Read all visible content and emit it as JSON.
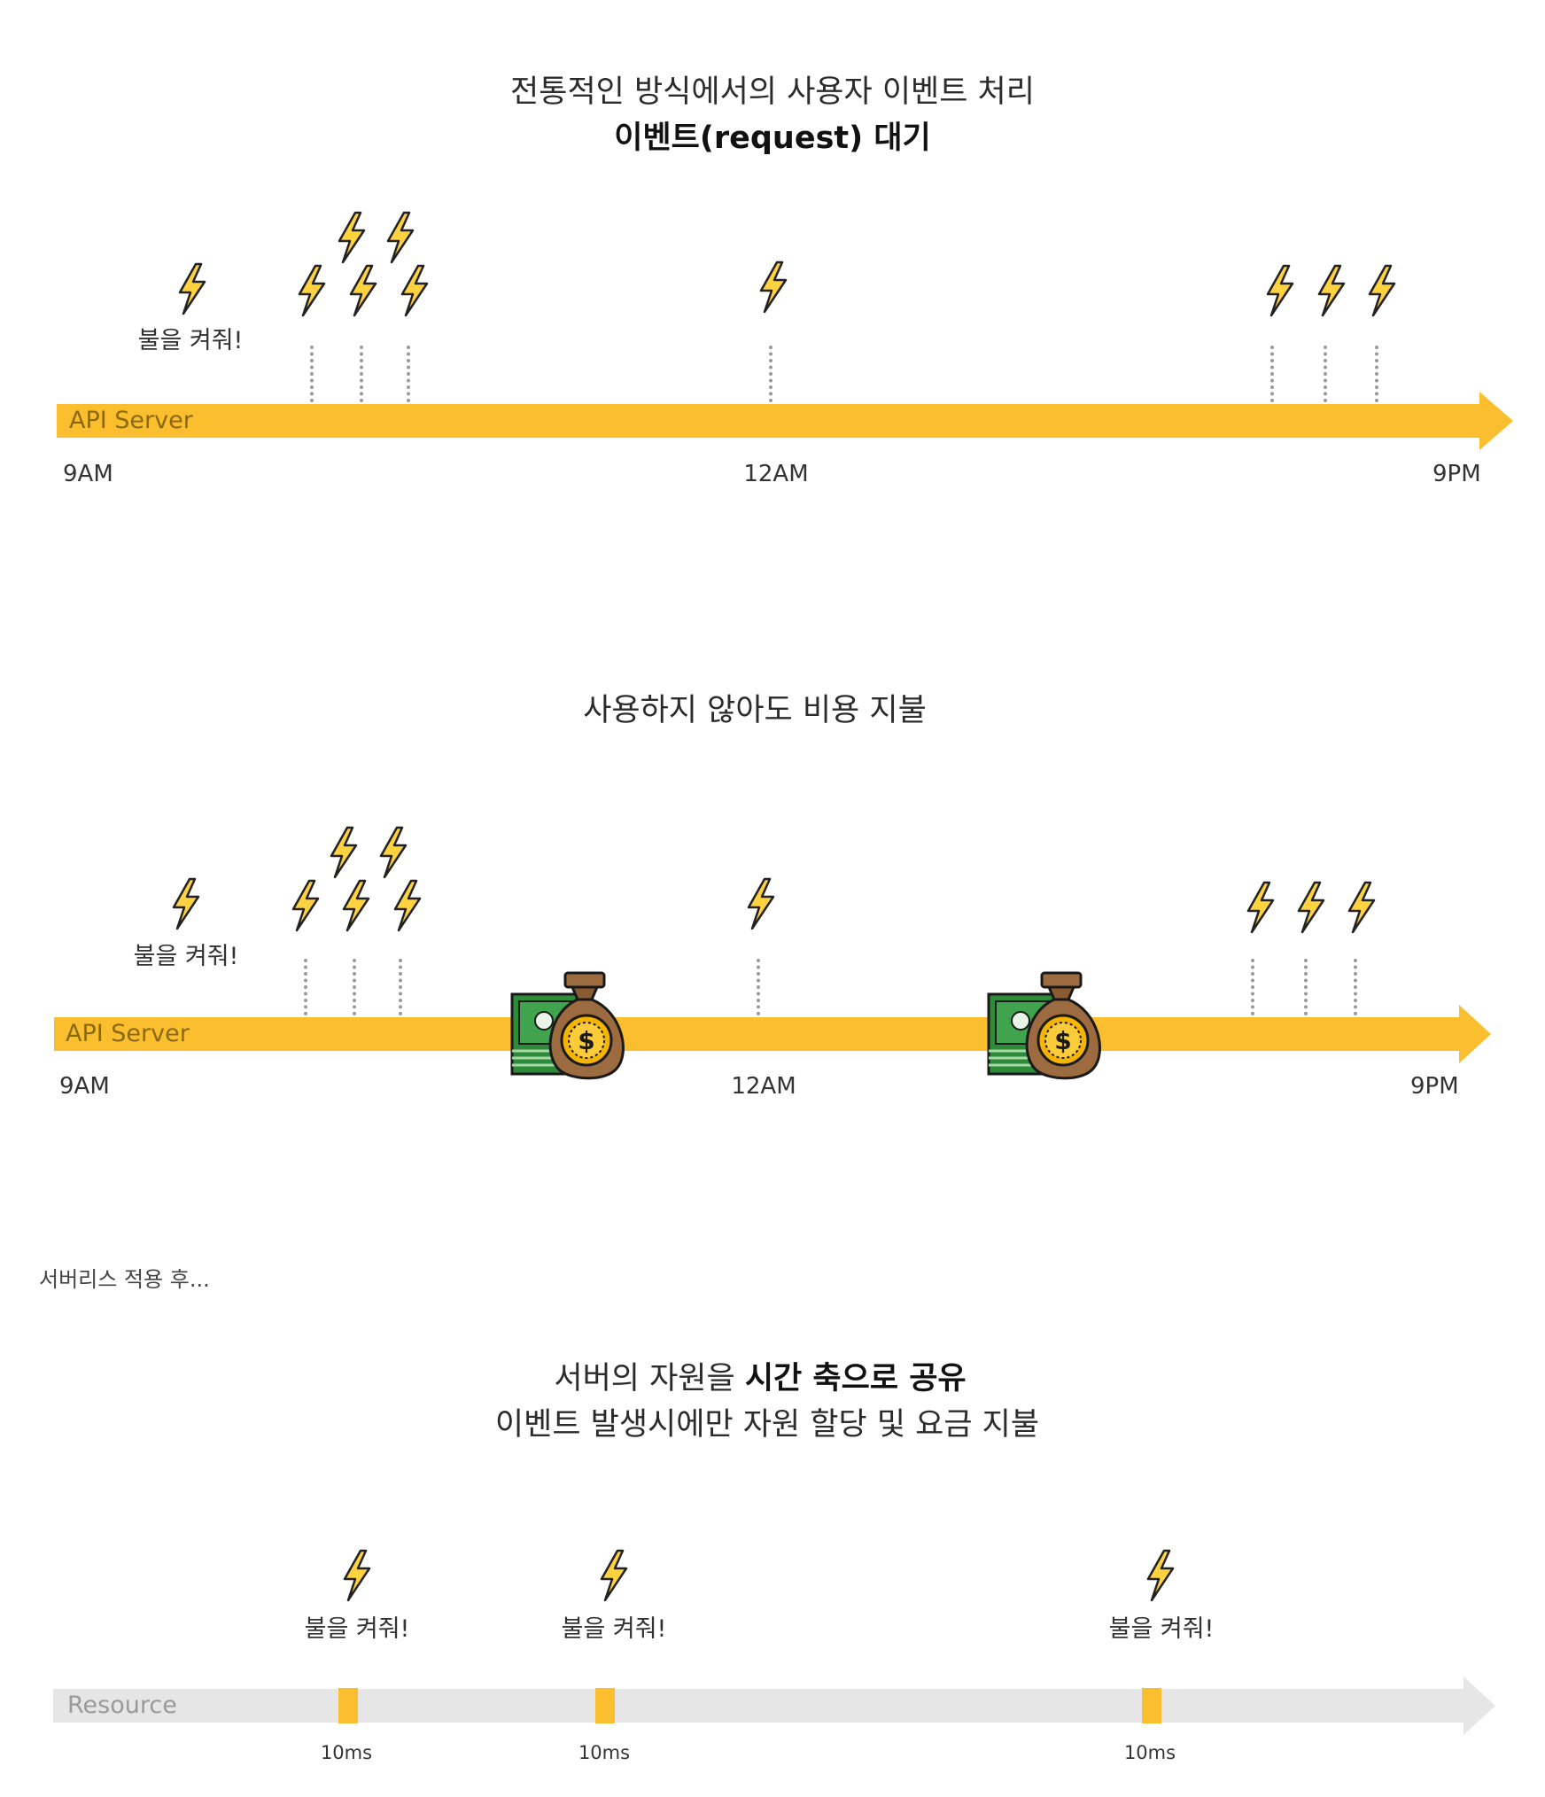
{
  "section1": {
    "title_line1": "전통적인 방식에서의 사용자 이벤트 처리",
    "title_line2": "이벤트(request) 대기",
    "fire_label": "불을 켜줘!",
    "bar_label": "API Server",
    "time_start": "9AM",
    "time_mid": "12AM",
    "time_end": "9PM"
  },
  "section2": {
    "title": "사용하지 않아도 비용 지불",
    "fire_label": "불을 켜줘!",
    "bar_label": "API Server",
    "time_start": "9AM",
    "time_mid": "12AM",
    "time_end": "9PM"
  },
  "serverless_note": "서버리스 적용 후...",
  "section3": {
    "title_line1_prefix": "서버의 자원을 ",
    "title_line1_bold": "시간 축으로 공유",
    "title_line2": "이벤트 발생시에만 자원 할당 및 요금 지불",
    "fire_labels": [
      "불을 켜줘!",
      "불을 켜줘!",
      "불을 켜줘!"
    ],
    "bar_label": "Resource",
    "duration_labels": [
      "10ms",
      "10ms",
      "10ms"
    ]
  },
  "colors": {
    "accent": "#FBBE2E",
    "bolt_fill": "#FFD23F",
    "bolt_stroke": "#222222",
    "resource_bar": "#E6E6E6",
    "money_green": "#2E8B3A",
    "bag_brown": "#9C6B3F",
    "coin_gold": "#F4B400"
  },
  "icons": {
    "event": "lightning-bolt-icon",
    "cost": "money-bag-icon"
  }
}
